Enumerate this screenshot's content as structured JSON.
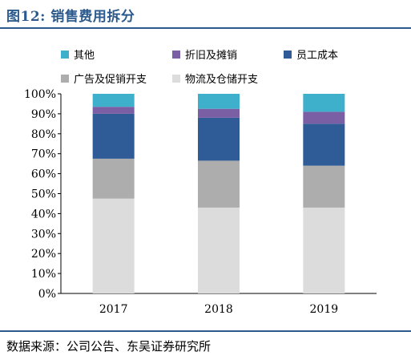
{
  "header": {
    "title": "图12:  销售费用拆分"
  },
  "footer": {
    "source": "数据来源：公司公告、东吴证券研究所"
  },
  "chart_data": {
    "type": "bar",
    "stacked": true,
    "categories": [
      "2017",
      "2018",
      "2019"
    ],
    "yticks": [
      "0%",
      "10%",
      "20%",
      "30%",
      "40%",
      "50%",
      "60%",
      "70%",
      "80%",
      "90%",
      "100%"
    ],
    "ylim": [
      0,
      100
    ],
    "legend_position": "top",
    "series": [
      {
        "name": "物流及仓储开支",
        "color": "#dcdcdc",
        "values": [
          47.5,
          43,
          43
        ]
      },
      {
        "name": "广告及促销开支",
        "color": "#adadad",
        "values": [
          20,
          23.5,
          21
        ]
      },
      {
        "name": "员工成本",
        "color": "#2f5c96",
        "values": [
          22.5,
          21.5,
          21
        ]
      },
      {
        "name": "折旧及摊销",
        "color": "#7b5fa4",
        "values": [
          3.5,
          4.5,
          6
        ]
      },
      {
        "name": "其他",
        "color": "#3fb0cc",
        "values": [
          6.5,
          7.5,
          9
        ]
      }
    ]
  }
}
